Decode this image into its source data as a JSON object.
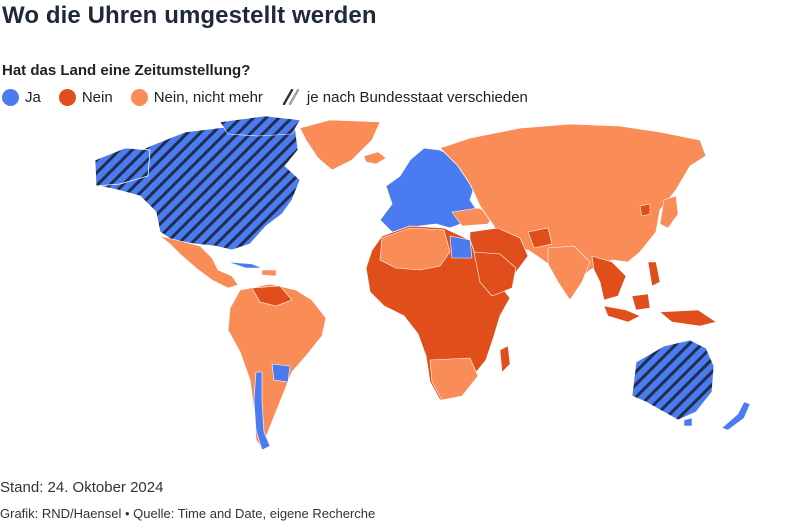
{
  "title": "Wo die Uhren umgestellt werden",
  "question": "Hat das Land eine Zeitumstellung?",
  "legend": [
    {
      "label": "Ja",
      "color": "#4a7bf0",
      "icon": "solid-circle"
    },
    {
      "label": "Nein",
      "color": "#e04e1b",
      "icon": "solid-circle"
    },
    {
      "label": "Nein, nicht mehr",
      "color": "#fa8c57",
      "icon": "solid-circle"
    },
    {
      "label": "je nach Bundesstaat verschieden",
      "color": "#4a7bf0",
      "icon": "hatch-stripes"
    }
  ],
  "footer": {
    "stand": "Stand: 24. Oktober 2024",
    "credit": "Grafik: RND/Haensel • Quelle: Time and Date, eigene Recherche"
  }
}
